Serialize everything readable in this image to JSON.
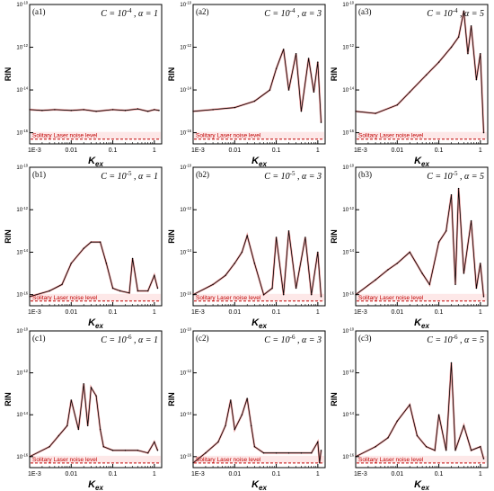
{
  "figure": {
    "colors": {
      "trace": "#000000",
      "fit": "#e05050",
      "noise_level": "#c00000",
      "frame": "#000000"
    },
    "noise_label": "Solitary Laser noise level"
  },
  "chart_data": [
    {
      "type": "line",
      "panel_label": "(a1)",
      "title": "C = 10-4 , α = 1",
      "title_parts": {
        "c_base": "C = 10",
        "c_exp": "-4",
        "sep": " , ",
        "alpha": "α = 1"
      },
      "xlabel": "Kex",
      "ylabel": "RIN",
      "x_scale": "log",
      "y_scale": "log",
      "xlim": [
        0.001,
        1.5
      ],
      "ylim": [
        3e-17,
        1e-10
      ],
      "x_ticks": [
        0.001,
        0.01,
        0.1,
        1
      ],
      "x_tick_labels": [
        "1E-3",
        "0.01",
        "0.1",
        "1"
      ],
      "y_ticks": [
        1e-16,
        1e-14,
        1e-12,
        1e-10
      ],
      "y_tick_labels": [
        "10-16",
        "10-14",
        "10-12",
        "10-10"
      ],
      "noise_level": 5e-17,
      "legend": "Solitary Laser noise level",
      "series": [
        {
          "x": [
            0.001,
            0.002,
            0.004,
            0.01,
            0.02,
            0.04,
            0.1,
            0.2,
            0.4,
            0.7,
            1.0,
            1.3
          ],
          "y": [
            1.2e-15,
            1.1e-15,
            1.2e-15,
            1.1e-15,
            1.2e-15,
            1e-15,
            1.2e-15,
            1.1e-15,
            1.3e-15,
            1e-15,
            1.2e-15,
            1.1e-15
          ]
        }
      ]
    },
    {
      "type": "line",
      "panel_label": "(a2)",
      "title": "C = 10-4 , α = 3",
      "title_parts": {
        "c_base": "C = 10",
        "c_exp": "-4",
        "sep": " , ",
        "alpha": "α = 3"
      },
      "xlabel": "Kex",
      "ylabel": "RIN",
      "x_scale": "log",
      "y_scale": "log",
      "xlim": [
        0.001,
        1.5
      ],
      "ylim": [
        3e-17,
        1e-10
      ],
      "x_ticks": [
        0.001,
        0.01,
        0.1,
        1
      ],
      "x_tick_labels": [
        "1E-3",
        "0.01",
        "0.1",
        "1"
      ],
      "y_ticks": [
        1e-16,
        1e-14,
        1e-12,
        1e-10
      ],
      "y_tick_labels": [
        "10-16",
        "10-14",
        "10-12",
        "10-10"
      ],
      "noise_level": 5e-17,
      "legend": "Solitary Laser noise level",
      "series": [
        {
          "x": [
            0.001,
            0.003,
            0.01,
            0.03,
            0.07,
            0.1,
            0.15,
            0.2,
            0.3,
            0.4,
            0.6,
            0.8,
            1.0,
            1.2
          ],
          "y": [
            1e-15,
            1.2e-15,
            1.5e-15,
            3e-15,
            1e-14,
            1e-13,
            8e-13,
            1e-14,
            5e-13,
            1e-15,
            3e-13,
            8e-15,
            2e-13,
            3e-16
          ]
        }
      ]
    },
    {
      "type": "line",
      "panel_label": "(a3)",
      "title": "C = 10-4 , α = 5",
      "title_parts": {
        "c_base": "C = 10",
        "c_exp": "-4",
        "sep": " , ",
        "alpha": "α = 5"
      },
      "xlabel": "Kex",
      "ylabel": "RIN",
      "x_scale": "log",
      "y_scale": "log",
      "xlim": [
        0.001,
        1.5
      ],
      "ylim": [
        3e-17,
        1e-10
      ],
      "x_ticks": [
        0.001,
        0.01,
        0.1,
        1
      ],
      "x_tick_labels": [
        "1E-3",
        "0.01",
        "0.1",
        "1"
      ],
      "y_ticks": [
        1e-16,
        1e-14,
        1e-12,
        1e-10
      ],
      "y_tick_labels": [
        "10-16",
        "10-14",
        "10-12",
        "10-10"
      ],
      "noise_level": 5e-17,
      "legend": "Solitary Laser noise level",
      "series": [
        {
          "x": [
            0.001,
            0.003,
            0.01,
            0.02,
            0.05,
            0.1,
            0.2,
            0.3,
            0.4,
            0.5,
            0.6,
            0.8,
            1.0,
            1.2
          ],
          "y": [
            1e-15,
            8e-16,
            2e-15,
            8e-15,
            5e-14,
            2e-13,
            1e-12,
            3e-12,
            5e-11,
            5e-13,
            1e-11,
            3e-14,
            5e-13,
            1e-16
          ]
        }
      ]
    },
    {
      "type": "line",
      "panel_label": "(b1)",
      "title": "C = 10-5 , α = 1",
      "title_parts": {
        "c_base": "C = 10",
        "c_exp": "-5",
        "sep": " , ",
        "alpha": "α = 1"
      },
      "xlabel": "Kex",
      "ylabel": "RIN",
      "x_scale": "log",
      "y_scale": "log",
      "xlim": [
        0.001,
        1.5
      ],
      "ylim": [
        3e-17,
        1e-10
      ],
      "x_ticks": [
        0.001,
        0.01,
        0.1,
        1
      ],
      "x_tick_labels": [
        "1E-3",
        "0.01",
        "0.1",
        "1"
      ],
      "y_ticks": [
        1e-16,
        1e-14,
        1e-12,
        1e-10
      ],
      "y_tick_labels": [
        "10-16",
        "10-14",
        "10-12",
        "10-10"
      ],
      "noise_level": 5e-17,
      "legend": "Solitary Laser noise level",
      "series": [
        {
          "x": [
            0.001,
            0.003,
            0.006,
            0.01,
            0.02,
            0.03,
            0.05,
            0.07,
            0.1,
            0.15,
            0.25,
            0.3,
            0.4,
            0.7,
            1.0,
            1.2
          ],
          "y": [
            8e-17,
            1.5e-16,
            3e-16,
            3e-15,
            1.5e-14,
            3e-14,
            3e-14,
            3e-15,
            2e-16,
            1.5e-16,
            1.2e-16,
            5e-15,
            1.5e-16,
            1.5e-16,
            8e-16,
            2e-16
          ]
        }
      ]
    },
    {
      "type": "line",
      "panel_label": "(b2)",
      "title": "C = 10-5 , α = 3",
      "title_parts": {
        "c_base": "C = 10",
        "c_exp": "-5",
        "sep": " , ",
        "alpha": "α = 3"
      },
      "xlabel": "Kex",
      "ylabel": "RIN",
      "x_scale": "log",
      "y_scale": "log",
      "xlim": [
        0.001,
        1.5
      ],
      "ylim": [
        3e-17,
        1e-10
      ],
      "x_ticks": [
        0.001,
        0.01,
        0.1,
        1
      ],
      "x_tick_labels": [
        "1E-3",
        "0.01",
        "0.1",
        "1"
      ],
      "y_ticks": [
        1e-16,
        1e-14,
        1e-12,
        1e-10
      ],
      "y_tick_labels": [
        "10-16",
        "10-14",
        "10-12",
        "10-10"
      ],
      "noise_level": 5e-17,
      "legend": "Solitary Laser noise level",
      "series": [
        {
          "x": [
            0.001,
            0.003,
            0.006,
            0.01,
            0.015,
            0.02,
            0.03,
            0.05,
            0.08,
            0.1,
            0.15,
            0.2,
            0.3,
            0.5,
            0.7,
            1.0,
            1.2
          ],
          "y": [
            1e-16,
            3e-16,
            8e-16,
            3e-15,
            1e-14,
            6e-14,
            3e-15,
            1e-16,
            2e-16,
            5e-14,
            1e-16,
            1e-13,
            2e-16,
            5e-14,
            1e-16,
            1e-14,
            8e-17
          ]
        }
      ]
    },
    {
      "type": "line",
      "panel_label": "(b3)",
      "title": "C = 10-5 , α = 5",
      "title_parts": {
        "c_base": "C = 10",
        "c_exp": "-5",
        "sep": " , ",
        "alpha": "α = 5"
      },
      "xlabel": "Kex",
      "ylabel": "RIN",
      "x_scale": "log",
      "y_scale": "log",
      "xlim": [
        0.001,
        1.5
      ],
      "ylim": [
        3e-17,
        1e-10
      ],
      "x_ticks": [
        0.001,
        0.01,
        0.1,
        1
      ],
      "x_tick_labels": [
        "1E-3",
        "0.01",
        "0.1",
        "1"
      ],
      "y_ticks": [
        1e-16,
        1e-14,
        1e-12,
        1e-10
      ],
      "y_tick_labels": [
        "10-16",
        "10-14",
        "10-12",
        "10-10"
      ],
      "noise_level": 5e-17,
      "legend": "Solitary Laser noise level",
      "series": [
        {
          "x": [
            0.001,
            0.003,
            0.006,
            0.01,
            0.02,
            0.04,
            0.06,
            0.1,
            0.15,
            0.2,
            0.25,
            0.3,
            0.4,
            0.6,
            0.8,
            1.0,
            1.2
          ],
          "y": [
            1e-16,
            5e-16,
            1.5e-15,
            3e-15,
            1e-14,
            1e-15,
            3e-16,
            3e-14,
            1e-13,
            5e-12,
            3e-16,
            1e-11,
            1e-15,
            3e-13,
            2e-16,
            3e-15,
            8e-17
          ]
        }
      ]
    },
    {
      "type": "line",
      "panel_label": "(c1)",
      "title": "C = 10-6 , α = 1",
      "title_parts": {
        "c_base": "C = 10",
        "c_exp": "-6",
        "sep": " , ",
        "alpha": "α = 1"
      },
      "xlabel": "Kex",
      "ylabel": "RIN",
      "x_scale": "log",
      "y_scale": "log",
      "xlim": [
        0.001,
        1.5
      ],
      "ylim": [
        3e-17,
        1e-10
      ],
      "x_ticks": [
        0.001,
        0.01,
        0.1,
        1
      ],
      "x_tick_labels": [
        "1E-3",
        "0.01",
        "0.1",
        "1"
      ],
      "y_ticks": [
        1e-16,
        1e-14,
        1e-12,
        1e-10
      ],
      "y_tick_labels": [
        "10-16",
        "10-14",
        "10-12",
        "10-10"
      ],
      "noise_level": 5e-17,
      "legend": "Solitary Laser noise level",
      "series": [
        {
          "x": [
            0.001,
            0.003,
            0.005,
            0.008,
            0.01,
            0.015,
            0.02,
            0.025,
            0.03,
            0.04,
            0.05,
            0.06,
            0.1,
            0.2,
            0.4,
            0.7,
            1.0,
            1.2
          ],
          "y": [
            1e-16,
            3e-16,
            1e-15,
            3e-15,
            5e-14,
            2e-15,
            3e-13,
            3e-15,
            2e-13,
            8e-14,
            2e-15,
            3e-16,
            2e-16,
            2e-16,
            2e-16,
            1.5e-16,
            5e-16,
            2e-16
          ]
        }
      ]
    },
    {
      "type": "line",
      "panel_label": "(c2)",
      "title": "C = 10-6 , α = 3",
      "title_parts": {
        "c_base": "C = 10",
        "c_exp": "-6",
        "sep": " , ",
        "alpha": "α = 3"
      },
      "xlabel": "Kex",
      "ylabel": "RIN",
      "x_scale": "log",
      "y_scale": "log",
      "xlim": [
        0.001,
        1.5
      ],
      "ylim": [
        3e-17,
        1e-10
      ],
      "x_ticks": [
        0.001,
        0.01,
        0.1,
        1
      ],
      "x_tick_labels": [
        "1E-3",
        "0.01",
        "0.1",
        "1"
      ],
      "y_ticks": [
        1e-16,
        1e-14,
        1e-12,
        1e-10
      ],
      "y_tick_labels": [
        "10-16",
        "10-14",
        "10-12",
        "10-10"
      ],
      "noise_level": 5e-17,
      "legend": "Solitary Laser noise level",
      "series": [
        {
          "x": [
            0.001,
            0.002,
            0.004,
            0.006,
            0.008,
            0.01,
            0.015,
            0.02,
            0.025,
            0.03,
            0.05,
            0.1,
            0.2,
            0.4,
            0.7,
            1.0,
            1.1,
            1.2
          ],
          "y": [
            5e-17,
            1.5e-16,
            5e-16,
            3e-15,
            5e-14,
            2e-15,
            1e-14,
            6e-14,
            3e-15,
            3e-16,
            1.5e-16,
            1.5e-16,
            1.5e-16,
            1.5e-16,
            1.5e-16,
            5e-16,
            5e-17,
            2e-16
          ]
        }
      ]
    },
    {
      "type": "line",
      "panel_label": "(c3)",
      "title": "C = 10-6 , α = 5",
      "title_parts": {
        "c_base": "C = 10",
        "c_exp": "-6",
        "sep": " , ",
        "alpha": "α = 5"
      },
      "xlabel": "Kex",
      "ylabel": "RIN",
      "x_scale": "log",
      "y_scale": "log",
      "xlim": [
        0.001,
        1.5
      ],
      "ylim": [
        3e-17,
        1e-10
      ],
      "x_ticks": [
        0.001,
        0.01,
        0.1,
        1
      ],
      "x_tick_labels": [
        "1E-3",
        "0.01",
        "0.1",
        "1"
      ],
      "y_ticks": [
        1e-16,
        1e-14,
        1e-12,
        1e-10
      ],
      "y_tick_labels": [
        "10-16",
        "10-14",
        "10-12",
        "10-10"
      ],
      "noise_level": 5e-17,
      "legend": "Solitary Laser noise level",
      "series": [
        {
          "x": [
            0.001,
            0.003,
            0.006,
            0.01,
            0.02,
            0.03,
            0.05,
            0.08,
            0.1,
            0.15,
            0.2,
            0.25,
            0.4,
            0.6,
            1.0,
            1.2
          ],
          "y": [
            1e-16,
            3e-16,
            8e-16,
            5e-15,
            3e-14,
            1e-15,
            3e-16,
            2e-16,
            1e-14,
            2e-16,
            3e-12,
            2e-16,
            3e-15,
            2e-16,
            3e-16,
            8e-17
          ]
        }
      ]
    }
  ]
}
